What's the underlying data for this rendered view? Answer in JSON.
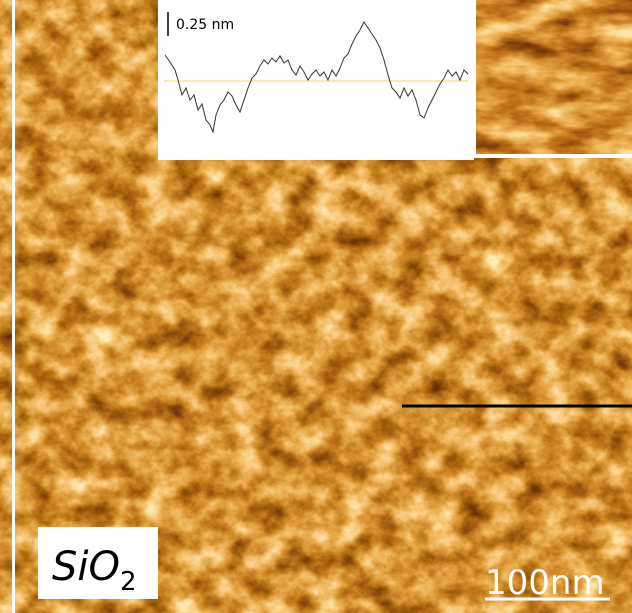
{
  "inset": {
    "scale_label": "0.25 nm"
  },
  "sample_label": {
    "text": "SiO",
    "subscript": "2"
  },
  "scale_bar": {
    "label": "100nm"
  }
}
